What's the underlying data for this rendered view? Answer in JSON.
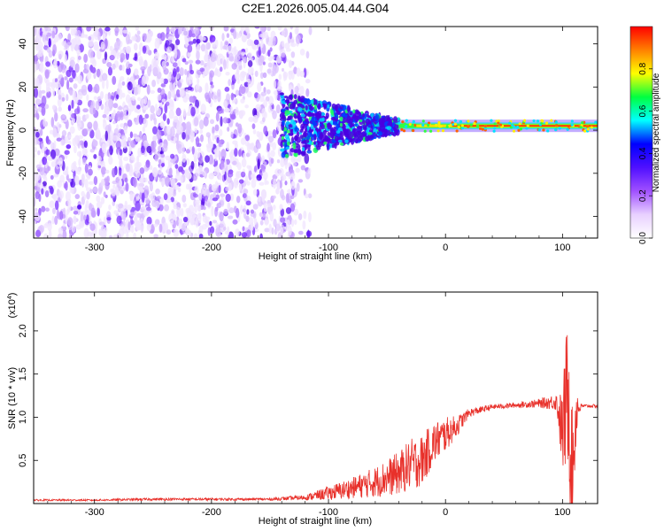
{
  "chart_data": [
    {
      "type": "heatmap",
      "title": "C2E1.2026.005.04.44.G04",
      "xlabel": "Height of straight line (km)",
      "ylabel": "Frequency (Hz)",
      "xlim": [
        -352,
        130
      ],
      "ylim": [
        -50,
        48
      ],
      "xticks": [
        -300,
        -200,
        -100,
        0,
        100
      ],
      "xtick_labels": [
        "-300",
        "-200",
        "-100",
        "0",
        "100"
      ],
      "yticks": [
        -40,
        -20,
        0,
        20,
        40
      ],
      "ytick_labels": [
        "-40",
        "-20",
        "0",
        "20",
        "40"
      ],
      "colorbar": {
        "label": "Normalized spectral amplitude",
        "range": [
          0,
          1
        ],
        "ticks": [
          0.0,
          0.2,
          0.4,
          0.6,
          0.8
        ],
        "tick_labels": [
          "0.0",
          "0.2",
          "0.4",
          "0.6",
          "0.8"
        ],
        "colors": [
          "#ffffff",
          "#e8d0ff",
          "#a050ff",
          "#5010ff",
          "#0000ff",
          "#00ffff",
          "#00ff40",
          "#ffff00",
          "#ff8000",
          "#ff0000"
        ]
      },
      "regions": [
        {
          "description": "diffuse purple noise",
          "x_range": [
            -352,
            -115
          ],
          "frequency_range": [
            -50,
            48
          ],
          "amplitude": 0.2
        },
        {
          "description": "narrowing band",
          "x_range": [
            -140,
            -40
          ],
          "frequency_range": [
            -10,
            15
          ],
          "amplitude": 0.35
        },
        {
          "description": "tone at carrier",
          "x_range": [
            -40,
            130
          ],
          "frequency": 2,
          "amplitude": 0.9
        }
      ]
    },
    {
      "type": "line",
      "xlabel": "Height of straight line (km)",
      "ylabel": "SNR (10 * v/v)",
      "multiplier_label": "(x10",
      "multiplier_exponent": "4",
      "multiplier_suffix": ")",
      "xlim": [
        -352,
        130
      ],
      "ylim": [
        0,
        2.45
      ],
      "xticks": [
        -300,
        -200,
        -100,
        0,
        100
      ],
      "xtick_labels": [
        "-300",
        "-200",
        "-100",
        "0",
        "100"
      ],
      "yticks": [
        0.5,
        1.0,
        1.5,
        2.0
      ],
      "ytick_labels": [
        "0.5",
        "1.0",
        "1.5",
        "2.0"
      ],
      "color": "#e8302a",
      "series": [
        {
          "name": "SNR",
          "x": [
            -352,
            -300,
            -250,
            -200,
            -150,
            -120,
            -100,
            -80,
            -60,
            -40,
            -30,
            -20,
            -10,
            0,
            10,
            20,
            40,
            60,
            80,
            95,
            100,
            105,
            108,
            112,
            116,
            130
          ],
          "y": [
            0.04,
            0.04,
            0.05,
            0.05,
            0.05,
            0.07,
            0.12,
            0.18,
            0.25,
            0.35,
            0.45,
            0.5,
            0.7,
            0.8,
            0.9,
            1.05,
            1.12,
            1.14,
            1.16,
            1.18,
            0.8,
            1.4,
            0.3,
            1.1,
            1.13,
            1.13
          ],
          "noise_spread": [
            0.01,
            0.01,
            0.015,
            0.015,
            0.015,
            0.03,
            0.08,
            0.12,
            0.18,
            0.25,
            0.3,
            0.3,
            0.25,
            0.2,
            0.12,
            0.05,
            0.03,
            0.03,
            0.05,
            0.1,
            0.5,
            1.0,
            0.8,
            0.3,
            0.02,
            0.02
          ]
        }
      ]
    }
  ]
}
